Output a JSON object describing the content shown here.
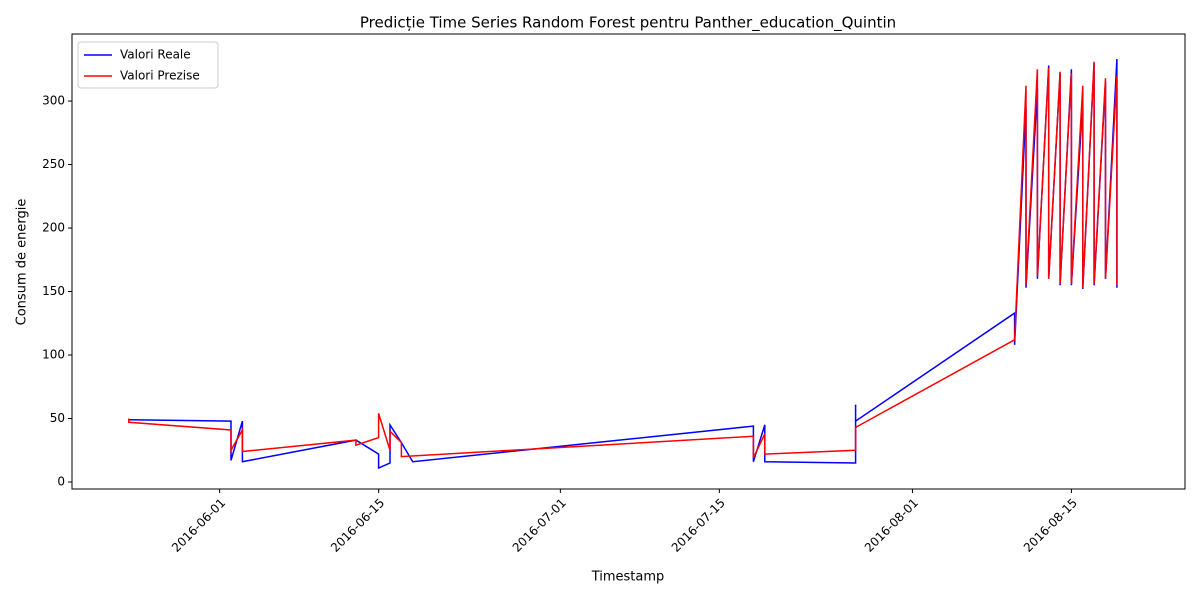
{
  "chart_data": {
    "type": "line",
    "title": "Predicție Time Series Random Forest pentru Panther_education_Quintin",
    "x_label": "Timestamp",
    "y_label": "Consum de energie",
    "xlim": [
      "2016-05-19",
      "2016-08-25"
    ],
    "ylim": [
      -5.5,
      352.8
    ],
    "xticks": [
      "2016-06-01",
      "2016-06-15",
      "2016-07-01",
      "2016-07-15",
      "2016-08-01",
      "2016-08-15"
    ],
    "yticks": [
      0,
      50,
      100,
      150,
      200,
      250,
      300
    ],
    "legend": "upper-left",
    "series": [
      {
        "name": "Valori Reale",
        "color": "#0000ff",
        "x": [
          "2016-05-24",
          "2016-06-02",
          "2016-06-02",
          "2016-06-03",
          "2016-06-03",
          "2016-06-13",
          "2016-06-15",
          "2016-06-15",
          "2016-06-16",
          "2016-06-16",
          "2016-06-17",
          "2016-06-18",
          "2016-07-18",
          "2016-07-18",
          "2016-07-19",
          "2016-07-19",
          "2016-07-27",
          "2016-07-27",
          "2016-07-27",
          "2016-08-10",
          "2016-08-10",
          "2016-08-11",
          "2016-08-11",
          "2016-08-12",
          "2016-08-12",
          "2016-08-13",
          "2016-08-13",
          "2016-08-14",
          "2016-08-14",
          "2016-08-15",
          "2016-08-15",
          "2016-08-16",
          "2016-08-16",
          "2016-08-17",
          "2016-08-17",
          "2016-08-18",
          "2016-08-18",
          "2016-08-19",
          "2016-08-19",
          "2016-08-19"
        ],
        "values": [
          49,
          48,
          17,
          48,
          16,
          33,
          22,
          11,
          15,
          45,
          31,
          16,
          44,
          16,
          45,
          16,
          15,
          61,
          48,
          133,
          108,
          295,
          153,
          310,
          160,
          328,
          160,
          322,
          155,
          325,
          155,
          300,
          152,
          330,
          155,
          315,
          160,
          333,
          153,
          300
        ]
      },
      {
        "name": "Valori Prezise",
        "color": "#ff0000",
        "x": [
          "2016-05-24",
          "2016-05-24",
          "2016-06-02",
          "2016-06-02",
          "2016-06-03",
          "2016-06-03",
          "2016-06-13",
          "2016-06-13",
          "2016-06-15",
          "2016-06-15",
          "2016-06-16",
          "2016-06-16",
          "2016-06-17",
          "2016-06-17",
          "2016-07-18",
          "2016-07-18",
          "2016-07-19",
          "2016-07-19",
          "2016-07-27",
          "2016-07-27",
          "2016-08-10",
          "2016-08-10",
          "2016-08-11",
          "2016-08-11",
          "2016-08-12",
          "2016-08-12",
          "2016-08-13",
          "2016-08-13",
          "2016-08-14",
          "2016-08-14",
          "2016-08-15",
          "2016-08-15",
          "2016-08-16",
          "2016-08-16",
          "2016-08-17",
          "2016-08-17",
          "2016-08-18",
          "2016-08-18",
          "2016-08-19",
          "2016-08-19",
          "2016-08-19"
        ],
        "values": [
          50,
          47,
          41,
          25,
          41,
          24,
          33,
          29,
          35,
          54,
          25,
          40,
          31,
          20,
          36,
          19,
          38,
          22,
          25,
          43,
          112,
          112,
          312,
          155,
          325,
          162,
          326,
          160,
          323,
          156,
          322,
          156,
          312,
          153,
          331,
          156,
          318,
          160,
          320,
          155,
          308
        ]
      }
    ]
  }
}
